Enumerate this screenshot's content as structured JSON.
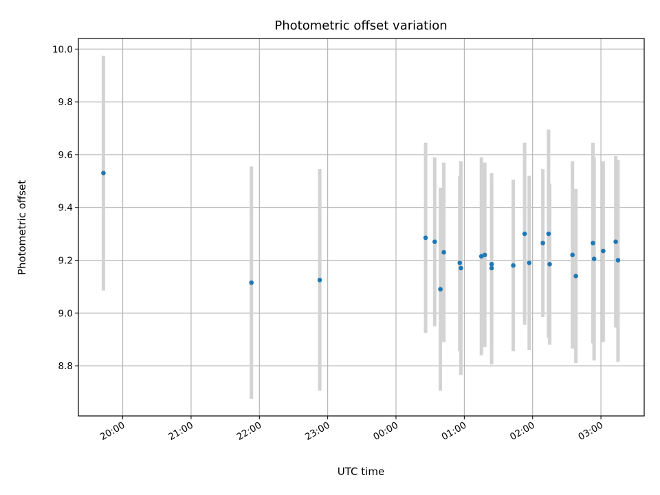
{
  "chart_data": {
    "type": "scatter",
    "title": "Photometric offset variation",
    "xlabel": "UTC time",
    "ylabel": "Photometric offset",
    "grid": true,
    "x_axis": {
      "ticks": [
        "20:00",
        "21:00",
        "22:00",
        "23:00",
        "00:00",
        "01:00",
        "02:00",
        "03:00"
      ]
    },
    "xlim": [
      "19:21",
      "03:38"
    ],
    "ylim": [
      8.61,
      10.04
    ],
    "y_ticks": [
      "8.8",
      "9.0",
      "9.2",
      "9.4",
      "9.6",
      "9.8",
      "10.0"
    ],
    "point_color": "#1f77b4",
    "errorbar_color": "#d3d3d3",
    "series": [
      {
        "points": [
          {
            "x": "19:43",
            "y": 9.53,
            "yerr_low": 9.085,
            "yerr_high": 9.975
          },
          {
            "x": "21:53",
            "y": 9.115,
            "yerr_low": 8.675,
            "yerr_high": 9.555
          },
          {
            "x": "22:53",
            "y": 9.125,
            "yerr_low": 8.705,
            "yerr_high": 9.545
          },
          {
            "x": "00:26",
            "y": 9.285,
            "yerr_low": 8.925,
            "yerr_high": 9.645
          },
          {
            "x": "00:34",
            "y": 9.27,
            "yerr_low": 8.95,
            "yerr_high": 9.59
          },
          {
            "x": "00:39",
            "y": 9.09,
            "yerr_low": 8.705,
            "yerr_high": 9.475
          },
          {
            "x": "00:42",
            "y": 9.23,
            "yerr_low": 8.89,
            "yerr_high": 9.57
          },
          {
            "x": "00:56",
            "y": 9.19,
            "yerr_low": 8.855,
            "yerr_high": 9.52
          },
          {
            "x": "00:57",
            "y": 9.17,
            "yerr_low": 8.765,
            "yerr_high": 9.575
          },
          {
            "x": "01:15",
            "y": 9.215,
            "yerr_low": 8.84,
            "yerr_high": 9.59
          },
          {
            "x": "01:18",
            "y": 9.22,
            "yerr_low": 8.87,
            "yerr_high": 9.57
          },
          {
            "x": "01:24",
            "y": 9.185,
            "yerr_low": 8.875,
            "yerr_high": 9.495
          },
          {
            "x": "01:24",
            "y": 9.17,
            "yerr_low": 8.805,
            "yerr_high": 9.53
          },
          {
            "x": "01:43",
            "y": 9.18,
            "yerr_low": 8.855,
            "yerr_high": 9.505
          },
          {
            "x": "01:53",
            "y": 9.3,
            "yerr_low": 8.955,
            "yerr_high": 9.645
          },
          {
            "x": "01:57",
            "y": 9.19,
            "yerr_low": 8.86,
            "yerr_high": 9.52
          },
          {
            "x": "02:09",
            "y": 9.265,
            "yerr_low": 8.985,
            "yerr_high": 9.545
          },
          {
            "x": "02:14",
            "y": 9.3,
            "yerr_low": 8.905,
            "yerr_high": 9.695
          },
          {
            "x": "02:15",
            "y": 9.185,
            "yerr_low": 8.88,
            "yerr_high": 9.49
          },
          {
            "x": "02:35",
            "y": 9.22,
            "yerr_low": 8.865,
            "yerr_high": 9.575
          },
          {
            "x": "02:38",
            "y": 9.14,
            "yerr_low": 8.81,
            "yerr_high": 9.47
          },
          {
            "x": "02:53",
            "y": 9.265,
            "yerr_low": 8.885,
            "yerr_high": 9.645
          },
          {
            "x": "02:54",
            "y": 9.205,
            "yerr_low": 8.82,
            "yerr_high": 9.59
          },
          {
            "x": "03:02",
            "y": 9.235,
            "yerr_low": 8.89,
            "yerr_high": 9.575
          },
          {
            "x": "03:13",
            "y": 9.27,
            "yerr_low": 8.945,
            "yerr_high": 9.595
          },
          {
            "x": "03:15",
            "y": 9.2,
            "yerr_low": 8.815,
            "yerr_high": 9.58
          }
        ]
      }
    ]
  }
}
